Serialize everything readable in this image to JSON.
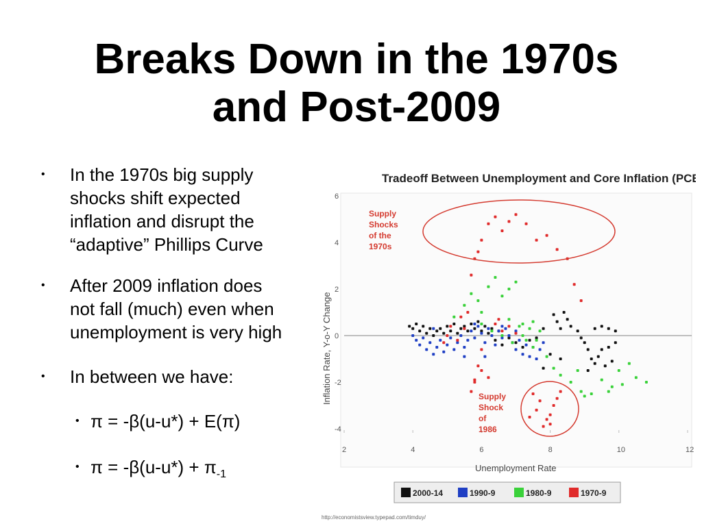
{
  "slide": {
    "title": "Breaks Down in the 1970s\nand Post-2009",
    "bullets": [
      "In the 1970s big supply\nshocks shift expected\ninflation and disrupt the\n“adaptive” Phillips Curve",
      "After 2009 inflation does\nnot fall (much) even when\nunemployment is very high",
      "In between we have:"
    ],
    "sub_bullets": [
      {
        "main": "π = -β(u-u*) + E(π)",
        "sub": ""
      },
      {
        "main": "π = -β(u-u*) + π",
        "sub": "-1"
      }
    ],
    "bullet_glyph": "•"
  },
  "chart_data": {
    "type": "scatter",
    "title": "Tradeoff Between Unemployment and Core Inflation (PCE)",
    "xlabel": "Unemployment Rate",
    "ylabel": "Inflation Rate, Y-o-Y Change",
    "xlim": [
      2,
      12
    ],
    "ylim": [
      -4,
      6
    ],
    "xticks": [
      2,
      4,
      6,
      8,
      10,
      12
    ],
    "yticks": [
      -4,
      -2,
      0,
      2,
      4,
      6
    ],
    "reference_line_y": 0,
    "annotations": [
      {
        "text": "Supply\nShocks\nof the\n1970s",
        "color": "#d43a2f"
      },
      {
        "text": "Supply\nShock\nof\n1986",
        "color": "#d43a2f"
      }
    ],
    "legend": {
      "placement": "bottom"
    },
    "source": "http://economistsview.typepad.com/timduy/",
    "series": [
      {
        "name": "2000-14",
        "color": "#111111",
        "points": [
          [
            3.9,
            0.4
          ],
          [
            4.0,
            0.3
          ],
          [
            4.1,
            0.5
          ],
          [
            4.2,
            0.2
          ],
          [
            4.3,
            0.4
          ],
          [
            4.4,
            0.1
          ],
          [
            4.5,
            0.3
          ],
          [
            4.6,
            0.0
          ],
          [
            4.7,
            0.2
          ],
          [
            4.8,
            0.3
          ],
          [
            4.9,
            0.1
          ],
          [
            5.0,
            0.4
          ],
          [
            5.1,
            0.2
          ],
          [
            5.2,
            0.5
          ],
          [
            5.3,
            0.1
          ],
          [
            5.4,
            0.3
          ],
          [
            5.5,
            0.4
          ],
          [
            5.6,
            0.2
          ],
          [
            5.7,
            0.5
          ],
          [
            5.8,
            0.3
          ],
          [
            5.9,
            0.6
          ],
          [
            6.0,
            0.2
          ],
          [
            6.1,
            0.4
          ],
          [
            6.2,
            0.1
          ],
          [
            6.3,
            0.3
          ],
          [
            6.4,
            -0.2
          ],
          [
            6.5,
            0.2
          ],
          [
            6.6,
            -0.4
          ],
          [
            6.8,
            -0.1
          ],
          [
            7.0,
            -0.3
          ],
          [
            7.2,
            -0.5
          ],
          [
            7.4,
            -0.2
          ],
          [
            7.6,
            -0.1
          ],
          [
            7.8,
            0.3
          ],
          [
            8.1,
            0.9
          ],
          [
            8.2,
            0.6
          ],
          [
            8.3,
            0.3
          ],
          [
            8.4,
            1.0
          ],
          [
            8.5,
            0.7
          ],
          [
            8.6,
            0.4
          ],
          [
            8.8,
            0.2
          ],
          [
            8.9,
            -0.1
          ],
          [
            9.0,
            -0.3
          ],
          [
            9.1,
            -0.6
          ],
          [
            9.2,
            -1.0
          ],
          [
            9.3,
            -1.2
          ],
          [
            9.4,
            -0.9
          ],
          [
            9.5,
            -0.6
          ],
          [
            9.6,
            -1.3
          ],
          [
            9.7,
            -0.5
          ],
          [
            9.8,
            -1.1
          ],
          [
            9.9,
            0.2
          ],
          [
            9.5,
            0.4
          ],
          [
            9.3,
            0.3
          ],
          [
            9.7,
            0.3
          ],
          [
            9.9,
            -0.3
          ],
          [
            8.3,
            -1.0
          ],
          [
            8.0,
            -0.8
          ],
          [
            7.8,
            -1.4
          ],
          [
            9.1,
            -1.5
          ]
        ]
      },
      {
        "name": "1990-9",
        "color": "#1f3fc4",
        "points": [
          [
            4.0,
            0.0
          ],
          [
            4.1,
            -0.2
          ],
          [
            4.2,
            -0.4
          ],
          [
            4.3,
            -0.1
          ],
          [
            4.4,
            -0.6
          ],
          [
            4.5,
            -0.3
          ],
          [
            4.6,
            -0.8
          ],
          [
            4.7,
            -0.5
          ],
          [
            4.8,
            -0.2
          ],
          [
            4.9,
            -0.7
          ],
          [
            5.0,
            -0.4
          ],
          [
            5.1,
            -0.1
          ],
          [
            5.2,
            -0.6
          ],
          [
            5.3,
            -0.3
          ],
          [
            5.4,
            0.0
          ],
          [
            5.5,
            -0.5
          ],
          [
            5.6,
            -0.2
          ],
          [
            5.7,
            0.2
          ],
          [
            5.8,
            -0.1
          ],
          [
            5.9,
            0.4
          ],
          [
            6.0,
            0.1
          ],
          [
            6.1,
            -0.3
          ],
          [
            6.2,
            0.3
          ],
          [
            6.3,
            0.0
          ],
          [
            6.4,
            -0.4
          ],
          [
            6.5,
            0.2
          ],
          [
            6.6,
            -0.1
          ],
          [
            6.7,
            0.3
          ],
          [
            6.8,
            0.0
          ],
          [
            6.9,
            -0.3
          ],
          [
            7.0,
            -0.6
          ],
          [
            7.1,
            -0.2
          ],
          [
            7.2,
            -0.8
          ],
          [
            7.3,
            -0.4
          ],
          [
            7.4,
            -0.9
          ],
          [
            7.5,
            -0.5
          ],
          [
            7.6,
            -1.0
          ],
          [
            7.7,
            -0.6
          ],
          [
            7.8,
            -0.3
          ],
          [
            6.1,
            -0.9
          ],
          [
            5.5,
            -0.9
          ],
          [
            4.6,
            0.3
          ],
          [
            5.8,
            0.5
          ],
          [
            6.6,
            0.4
          ],
          [
            7.0,
            0.2
          ]
        ]
      },
      {
        "name": "1980-9",
        "color": "#3ad13a",
        "points": [
          [
            5.2,
            0.8
          ],
          [
            5.5,
            1.3
          ],
          [
            5.7,
            1.8
          ],
          [
            5.9,
            1.5
          ],
          [
            6.0,
            1.0
          ],
          [
            6.2,
            2.1
          ],
          [
            6.4,
            2.5
          ],
          [
            6.6,
            1.7
          ],
          [
            6.8,
            2.0
          ],
          [
            7.0,
            2.3
          ],
          [
            7.1,
            0.4
          ],
          [
            7.2,
            0.0
          ],
          [
            7.3,
            -0.2
          ],
          [
            7.4,
            0.3
          ],
          [
            7.5,
            -0.5
          ],
          [
            7.6,
            -0.2
          ],
          [
            7.7,
            0.2
          ],
          [
            7.9,
            -0.9
          ],
          [
            8.1,
            -1.4
          ],
          [
            8.3,
            -1.7
          ],
          [
            8.6,
            -2.0
          ],
          [
            8.9,
            -2.4
          ],
          [
            9.2,
            -2.5
          ],
          [
            9.5,
            -1.9
          ],
          [
            9.7,
            -2.4
          ],
          [
            10.0,
            -1.5
          ],
          [
            10.3,
            -1.2
          ],
          [
            10.5,
            -1.8
          ],
          [
            10.8,
            -2.0
          ],
          [
            9.8,
            -2.2
          ],
          [
            6.0,
            0.5
          ],
          [
            6.3,
            0.2
          ],
          [
            6.6,
            0.0
          ],
          [
            6.9,
            -0.3
          ],
          [
            7.2,
            0.5
          ],
          [
            7.5,
            0.6
          ],
          [
            6.8,
            0.7
          ],
          [
            8.8,
            -1.5
          ],
          [
            9.0,
            -2.6
          ],
          [
            10.1,
            -2.1
          ]
        ]
      },
      {
        "name": "1970-9",
        "color": "#e02b2b",
        "points": [
          [
            4.9,
            -0.3
          ],
          [
            5.0,
            0.0
          ],
          [
            5.1,
            0.4
          ],
          [
            5.3,
            -0.2
          ],
          [
            5.5,
            0.3
          ],
          [
            5.6,
            1.0
          ],
          [
            5.7,
            2.6
          ],
          [
            5.8,
            3.3
          ],
          [
            5.9,
            3.6
          ],
          [
            6.0,
            4.1
          ],
          [
            6.2,
            4.8
          ],
          [
            6.4,
            5.1
          ],
          [
            6.6,
            4.5
          ],
          [
            6.8,
            4.9
          ],
          [
            7.0,
            5.2
          ],
          [
            7.3,
            4.8
          ],
          [
            7.6,
            4.1
          ],
          [
            7.9,
            4.3
          ],
          [
            8.2,
            3.7
          ],
          [
            8.5,
            3.3
          ],
          [
            8.7,
            2.2
          ],
          [
            8.9,
            1.5
          ],
          [
            6.0,
            -0.6
          ],
          [
            5.9,
            -1.3
          ],
          [
            5.8,
            -1.9
          ],
          [
            5.7,
            -2.4
          ],
          [
            5.8,
            -2.0
          ],
          [
            6.0,
            -1.5
          ],
          [
            6.2,
            -1.8
          ],
          [
            6.4,
            0.5
          ],
          [
            6.6,
            0.2
          ],
          [
            6.8,
            0.4
          ],
          [
            7.0,
            0.1
          ],
          [
            7.4,
            -3.5
          ],
          [
            7.6,
            -3.2
          ],
          [
            7.7,
            -2.8
          ],
          [
            7.9,
            -3.6
          ],
          [
            8.0,
            -3.4
          ],
          [
            8.1,
            -3.0
          ],
          [
            8.2,
            -2.7
          ],
          [
            8.3,
            -2.4
          ],
          [
            7.5,
            -2.5
          ],
          [
            7.8,
            -3.9
          ],
          [
            8.0,
            -3.8
          ],
          [
            6.5,
            0.7
          ],
          [
            5.4,
            0.8
          ]
        ]
      }
    ]
  }
}
